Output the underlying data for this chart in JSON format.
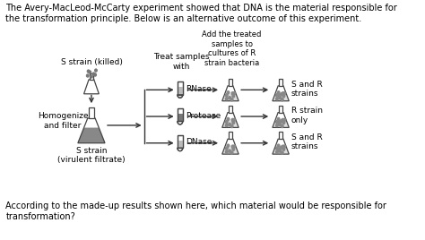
{
  "title_text": "The Avery-MacLeod-McCarty experiment showed that DNA is the material responsible for\nthe transformation principle. Below is an alternative outcome of this experiment.",
  "bottom_text": "According to the made-up results shown here, which material would be responsible for\ntransformation?",
  "treat_header": "Treat samples\nwith",
  "add_header": "Add the treated\nsamples to\ncultures of R\nstrain bacteria",
  "s_strain_killed": "S strain (killed)",
  "homogenize": "Homogenize\nand filter",
  "s_strain_virulent": "S strain\n(virulent filtrate)",
  "rnase": "RNase",
  "protease": "Protease",
  "dnase": "DNase",
  "result1": "S and R\nstrains",
  "result2": "R strain\nonly",
  "result3": "S and R\nstrains",
  "bg_color": "#ffffff",
  "text_color": "#000000",
  "outline_color": "#444444",
  "fill_dark": "#888888",
  "fill_light": "#cccccc",
  "dot_color": "#666666"
}
